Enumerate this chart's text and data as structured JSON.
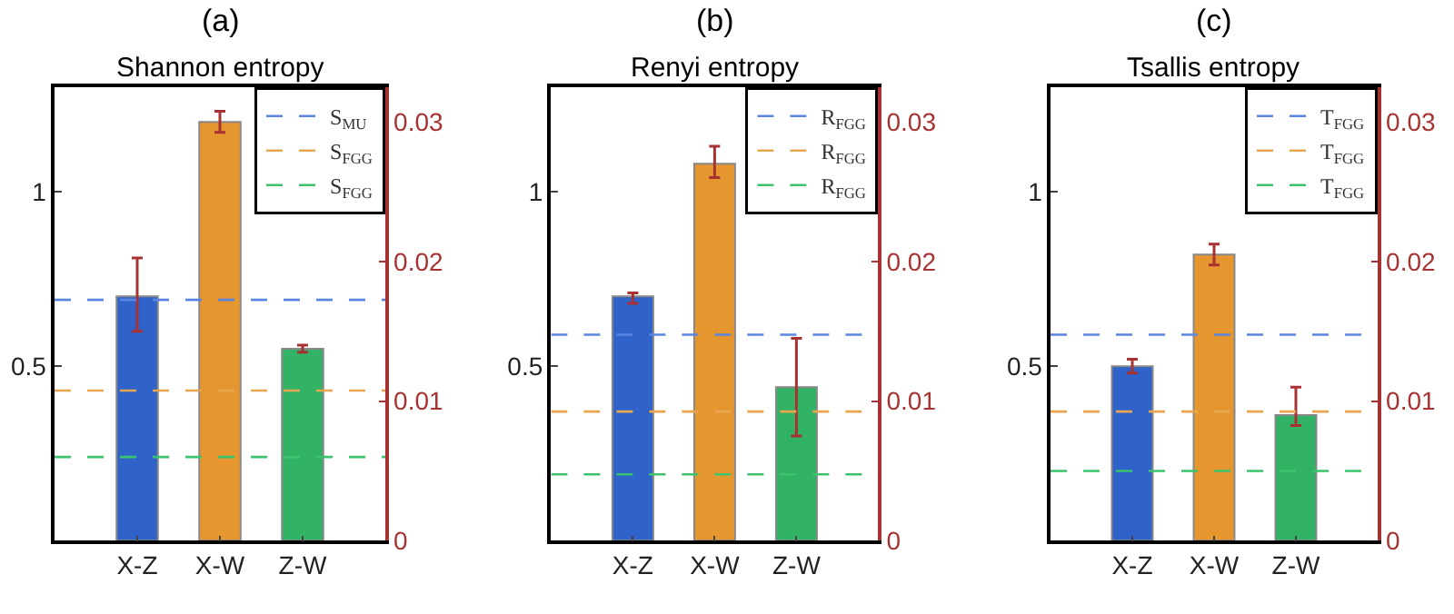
{
  "chart_data": [
    {
      "type": "bar",
      "title": "(a)",
      "subtitle": "Shannon entropy",
      "categories": [
        "X-Z",
        "X-W",
        "Z-W"
      ],
      "values": [
        0.7,
        1.2,
        0.55
      ],
      "colors": [
        "#2f63c9",
        "#e6962f",
        "#31b265"
      ],
      "errors": [
        [
          0.6,
          0.81
        ],
        [
          1.17,
          1.23
        ],
        [
          0.54,
          0.56
        ]
      ],
      "ylim": [
        0,
        1.3
      ],
      "yticks": [
        0.5,
        1
      ],
      "y2lim": [
        0,
        0.0325
      ],
      "y2ticks": [
        0,
        0.01,
        0.02,
        0.03
      ],
      "legend": "top right",
      "ref_lines": [
        {
          "axis": "y",
          "value": 0.69,
          "label": "S$_{MU}$",
          "color": "#5a85e0",
          "line_style": "dashed"
        },
        {
          "axis": "y",
          "value": 0.43,
          "label": "S$_{FGG}$",
          "color": "#e8a650",
          "line_style": "dashed"
        },
        {
          "axis": "y",
          "value": 0.24,
          "label": "S$_{FGG}$",
          "color": "#3cc36e",
          "line_style": "dashed"
        }
      ]
    },
    {
      "type": "bar",
      "title": "(b)",
      "subtitle": "Renyi entropy",
      "categories": [
        "X-Z",
        "X-W",
        "Z-W"
      ],
      "values": [
        0.7,
        1.08,
        0.44
      ],
      "colors": [
        "#2f63c9",
        "#e6962f",
        "#31b265"
      ],
      "errors": [
        [
          0.68,
          0.71
        ],
        [
          1.04,
          1.13
        ],
        [
          0.3,
          0.58
        ]
      ],
      "ylim": [
        0,
        1.3
      ],
      "yticks": [
        0.5,
        1
      ],
      "y2lim": [
        0,
        0.0325
      ],
      "y2ticks": [
        0,
        0.01,
        0.02,
        0.03
      ],
      "legend": "top right",
      "ref_lines": [
        {
          "axis": "y",
          "value": 0.59,
          "label": "R$_{FGG}$",
          "color": "#5a85e0",
          "line_style": "dashed"
        },
        {
          "axis": "y",
          "value": 0.37,
          "label": "R$_{FGG}$",
          "color": "#e8a650",
          "line_style": "dashed"
        },
        {
          "axis": "y",
          "value": 0.19,
          "label": "R$_{FGG}$",
          "color": "#3cc36e",
          "line_style": "dashed"
        }
      ]
    },
    {
      "type": "bar",
      "title": "(c)",
      "subtitle": "Tsallis entropy",
      "categories": [
        "X-Z",
        "X-W",
        "Z-W"
      ],
      "values": [
        0.5,
        0.82,
        0.36
      ],
      "colors": [
        "#2f63c9",
        "#e6962f",
        "#31b265"
      ],
      "errors": [
        [
          0.48,
          0.52
        ],
        [
          0.79,
          0.85
        ],
        [
          0.33,
          0.44
        ]
      ],
      "ylim": [
        0,
        1.3
      ],
      "yticks": [
        0.5,
        1
      ],
      "y2lim": [
        0,
        0.0325
      ],
      "y2ticks": [
        0,
        0.01,
        0.02,
        0.03
      ],
      "legend": "top right",
      "ref_lines": [
        {
          "axis": "y",
          "value": 0.59,
          "label": "T$_{FGG}$",
          "color": "#5a85e0",
          "line_style": "dashed"
        },
        {
          "axis": "y",
          "value": 0.37,
          "label": "T$_{FGG}$",
          "color": "#e8a650",
          "line_style": "dashed"
        },
        {
          "axis": "y",
          "value": 0.2,
          "label": "T$_{FGG}$",
          "color": "#3cc36e",
          "line_style": "dashed"
        }
      ]
    }
  ]
}
